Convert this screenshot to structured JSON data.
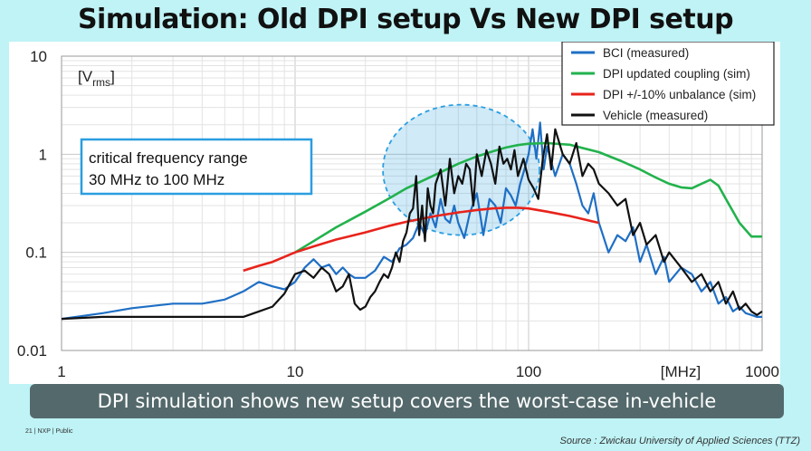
{
  "slide": {
    "title": "Simulation: Old DPI setup Vs New DPI setup",
    "caption": "DPI simulation shows new setup covers the worst-case in-vehicle",
    "footer_left": "21  |  NXP  |  Public",
    "source": "Source : Zwickau University of Applied Sciences (TTZ)"
  },
  "annotation": {
    "line1": "critical frequency range",
    "line2": "30 MHz to 100 MHz"
  },
  "colors": {
    "bci": "#1f6fc5",
    "dpi_coupling": "#22b24c",
    "dpi_unbalance": "#e8231b",
    "vehicle": "#111111",
    "highlight": "#2a9ee0"
  },
  "chart_data": {
    "type": "line",
    "x_scale": "log",
    "y_scale": "log",
    "xlim": [
      1,
      1000
    ],
    "ylim": [
      0.01,
      10
    ],
    "xlabel": "[MHz]",
    "ylabel": "[V",
    "ylabel_sub": "rms",
    "ylabel_close": "]",
    "x_ticks": [
      {
        "v": 1,
        "label": "1"
      },
      {
        "v": 10,
        "label": "10"
      },
      {
        "v": 100,
        "label": "100"
      },
      {
        "v": 1000,
        "label": "1000"
      }
    ],
    "y_ticks": [
      {
        "v": 10,
        "label": "10"
      },
      {
        "v": 1,
        "label": "1"
      },
      {
        "v": 0.1,
        "label": "0.1"
      },
      {
        "v": 0.01,
        "label": "0.01"
      }
    ],
    "highlight_range_mhz": [
      30,
      100
    ],
    "series": [
      {
        "name": "BCI (measured)",
        "color_key": "bci",
        "width": 2.2,
        "x": [
          1,
          1.5,
          2,
          3,
          4,
          5,
          6,
          7,
          8,
          9,
          10,
          11,
          12,
          13,
          14,
          15,
          16,
          17,
          18,
          20,
          22,
          24,
          26,
          28,
          30,
          32,
          34,
          36,
          38,
          40,
          42,
          44,
          46,
          48,
          50,
          53,
          56,
          60,
          64,
          68,
          72,
          76,
          80,
          84,
          88,
          92,
          96,
          100,
          104,
          108,
          112,
          116,
          120,
          130,
          140,
          150,
          160,
          170,
          180,
          190,
          200,
          220,
          240,
          260,
          280,
          300,
          320,
          350,
          380,
          400,
          450,
          500,
          550,
          600,
          650,
          700,
          750,
          800,
          850,
          900,
          950,
          1000
        ],
        "y": [
          0.021,
          0.024,
          0.027,
          0.03,
          0.03,
          0.033,
          0.04,
          0.05,
          0.045,
          0.042,
          0.05,
          0.07,
          0.085,
          0.07,
          0.075,
          0.06,
          0.07,
          0.06,
          0.055,
          0.055,
          0.065,
          0.09,
          0.08,
          0.11,
          0.12,
          0.14,
          0.2,
          0.15,
          0.25,
          0.18,
          0.35,
          0.22,
          0.2,
          0.3,
          0.2,
          0.14,
          0.25,
          0.4,
          0.15,
          0.35,
          0.3,
          0.2,
          0.45,
          0.38,
          0.3,
          0.5,
          0.7,
          1.0,
          1.8,
          0.9,
          2.1,
          0.7,
          1.2,
          0.6,
          1.0,
          0.8,
          0.5,
          0.3,
          0.25,
          0.4,
          0.2,
          0.1,
          0.15,
          0.13,
          0.18,
          0.08,
          0.12,
          0.06,
          0.09,
          0.05,
          0.07,
          0.06,
          0.04,
          0.05,
          0.03,
          0.035,
          0.025,
          0.028,
          0.024,
          0.023,
          0.022,
          0.022
        ]
      },
      {
        "name": "DPI updated coupling (sim)",
        "color_key": "dpi_coupling",
        "width": 2.6,
        "x": [
          10,
          12,
          15,
          20,
          25,
          30,
          40,
          50,
          60,
          70,
          80,
          90,
          100,
          120,
          150,
          200,
          250,
          300,
          350,
          400,
          450,
          500,
          550,
          600,
          650,
          700,
          800,
          900,
          1000
        ],
        "y": [
          0.1,
          0.13,
          0.18,
          0.26,
          0.35,
          0.45,
          0.62,
          0.8,
          0.95,
          1.07,
          1.17,
          1.24,
          1.28,
          1.3,
          1.25,
          1.05,
          0.85,
          0.7,
          0.58,
          0.5,
          0.46,
          0.45,
          0.5,
          0.55,
          0.48,
          0.35,
          0.2,
          0.145,
          0.145
        ]
      },
      {
        "name": "DPI +/-10% unbalance (sim)",
        "color_key": "dpi_unbalance",
        "width": 2.6,
        "x": [
          6,
          7,
          8,
          10,
          12,
          15,
          20,
          25,
          30,
          40,
          50,
          60,
          70,
          80,
          90,
          100,
          120,
          150,
          200
        ],
        "y": [
          0.065,
          0.073,
          0.08,
          0.1,
          0.115,
          0.135,
          0.16,
          0.185,
          0.205,
          0.235,
          0.255,
          0.27,
          0.28,
          0.285,
          0.285,
          0.28,
          0.26,
          0.235,
          0.2
        ]
      },
      {
        "name": "Vehicle (measured)",
        "color_key": "vehicle",
        "width": 2.2,
        "x": [
          1,
          1.5,
          2,
          3,
          4,
          5,
          6,
          7,
          8,
          9,
          10,
          11,
          12,
          13,
          14,
          15,
          16,
          17,
          18,
          19,
          20,
          21,
          22,
          23,
          24,
          25,
          26,
          27,
          28,
          29,
          30,
          31,
          32,
          33,
          34,
          35,
          36,
          37,
          38,
          39,
          40,
          42,
          44,
          46,
          48,
          50,
          52,
          54,
          56,
          58,
          60,
          63,
          66,
          69,
          72,
          75,
          78,
          81,
          84,
          87,
          90,
          95,
          100,
          105,
          110,
          115,
          120,
          125,
          130,
          140,
          150,
          160,
          170,
          180,
          190,
          200,
          220,
          240,
          260,
          280,
          300,
          320,
          350,
          380,
          400,
          450,
          500,
          550,
          600,
          650,
          700,
          750,
          800,
          850,
          900,
          950,
          1000
        ],
        "y": [
          0.021,
          0.022,
          0.022,
          0.022,
          0.022,
          0.022,
          0.022,
          0.025,
          0.028,
          0.038,
          0.06,
          0.065,
          0.055,
          0.07,
          0.06,
          0.04,
          0.045,
          0.06,
          0.03,
          0.026,
          0.028,
          0.035,
          0.04,
          0.05,
          0.06,
          0.055,
          0.07,
          0.1,
          0.08,
          0.13,
          0.16,
          0.25,
          0.28,
          0.6,
          0.15,
          0.3,
          0.13,
          0.45,
          0.3,
          0.25,
          0.5,
          0.7,
          0.3,
          0.9,
          0.4,
          0.6,
          0.5,
          0.8,
          0.7,
          0.3,
          1.0,
          0.6,
          1.1,
          0.8,
          0.5,
          1.2,
          0.8,
          0.9,
          0.7,
          1.1,
          0.6,
          0.9,
          0.55,
          0.45,
          0.35,
          0.9,
          1.6,
          0.7,
          1.8,
          1.0,
          0.8,
          1.3,
          0.6,
          0.8,
          0.7,
          0.5,
          0.4,
          0.3,
          0.35,
          0.15,
          0.2,
          0.12,
          0.15,
          0.08,
          0.1,
          0.07,
          0.05,
          0.06,
          0.04,
          0.05,
          0.03,
          0.04,
          0.026,
          0.03,
          0.025,
          0.023,
          0.025
        ]
      }
    ]
  }
}
